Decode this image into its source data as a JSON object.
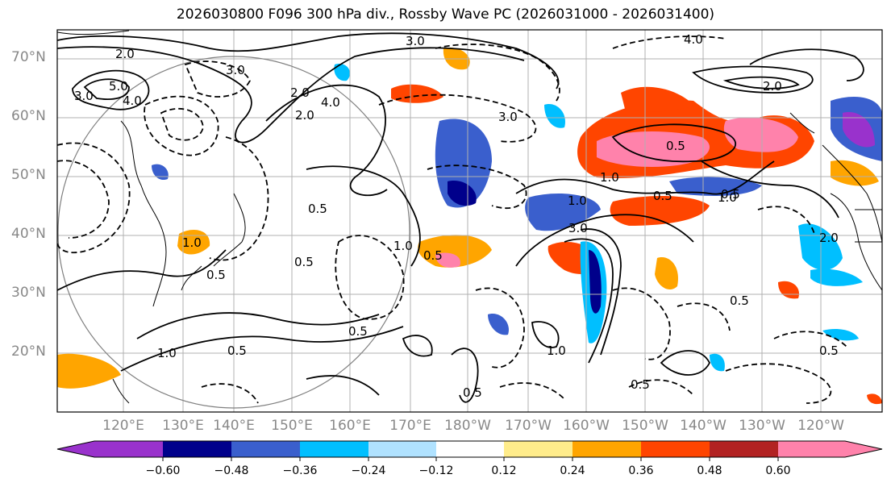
{
  "title": "2026030800 F096 300 hPa div., Rossby Wave PC (2026031000 - 2026031400)",
  "lat_labels": [
    "70°N",
    "60°N",
    "50°N",
    "40°N",
    "30°N",
    "20°N"
  ],
  "lon_labels": [
    "120°E",
    "130°E",
    "140°E",
    "150°E",
    "160°E",
    "170°E",
    "180°W",
    "170°W",
    "160°W",
    "150°W",
    "140°W",
    "130°W",
    "120°W"
  ],
  "colorbar": {
    "ticks": [
      "−0.60",
      "−0.48",
      "−0.36",
      "−0.24",
      "−0.12",
      "0.12",
      "0.24",
      "0.36",
      "0.48",
      "0.60"
    ],
    "colors": [
      "#9932cc",
      "#00008b",
      "#3a5fcd",
      "#00bfff",
      "#b0e2ff",
      "#ffffff",
      "#ffec8b",
      "#ffa500",
      "#ff4500",
      "#b22222",
      "#ff82ab"
    ]
  },
  "contour_labels": [
    "3.0",
    "2.0",
    "5.0",
    "4.0",
    "3.0",
    "2.0",
    "3.0",
    "4.0",
    "2.0",
    "1.0",
    "0.5",
    "0.5",
    "0.5",
    "1.0",
    "0.5",
    "1.0",
    "3.0",
    "1.0",
    "0.5",
    "0.5",
    "1.0",
    "0.5",
    "0.5",
    "0.5",
    "0.5",
    "0.5",
    "1.0",
    "0.5",
    "2.0",
    "4.0",
    "3.0",
    "2.0",
    "0.5",
    "1.0"
  ]
}
